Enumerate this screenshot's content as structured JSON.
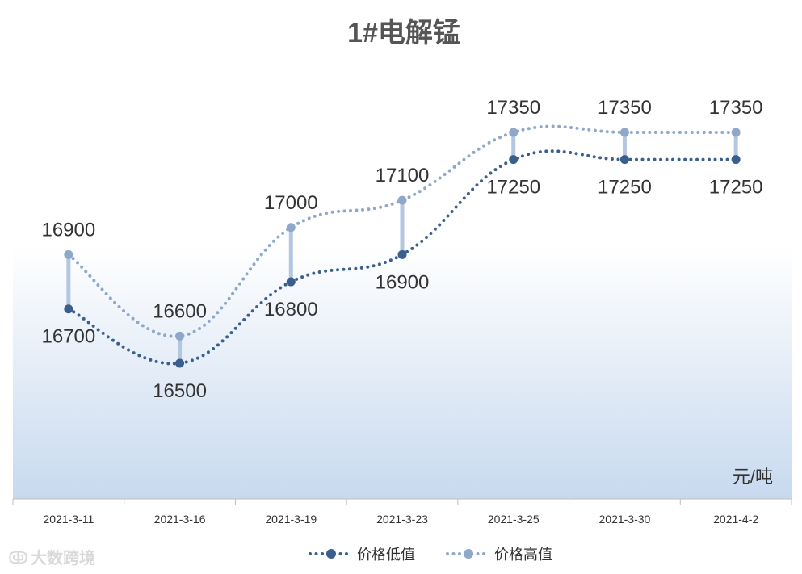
{
  "chart_data": {
    "type": "line",
    "title": "1#电解锰",
    "unit_label": "元/吨",
    "categories": [
      "2021-3-11",
      "2021-3-16",
      "2021-3-19",
      "2021-3-23",
      "2021-3-25",
      "2021-3-30",
      "2021-4-2"
    ],
    "series": [
      {
        "name": "价格低值",
        "values": [
          16700,
          16500,
          16800,
          16900,
          17250,
          17250,
          17250
        ],
        "color": "#3a5f8f"
      },
      {
        "name": "价格高值",
        "values": [
          16900,
          16600,
          17000,
          17100,
          17350,
          17350,
          17350
        ],
        "color": "#8fa7c8"
      }
    ],
    "high_low_lines": true,
    "legend_position": "bottom",
    "data_labels": true
  },
  "watermark": "大数跨境"
}
